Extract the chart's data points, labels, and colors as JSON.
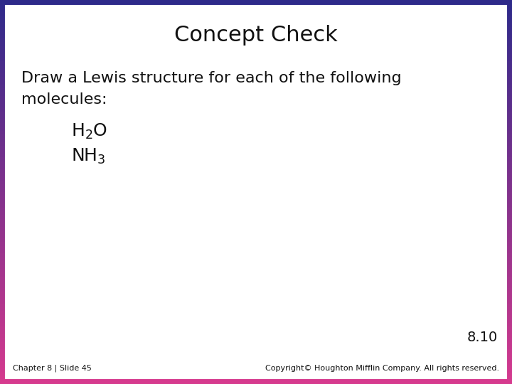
{
  "title": "Concept Check",
  "body_line1": "Draw a Lewis structure for each of the following",
  "body_line2": "molecules:",
  "slide_number": "8.10",
  "footer_left": "Chapter 8 | Slide 45",
  "footer_right": "Copyright© Houghton Mifflin Company. All rights reserved.",
  "bg_color": "#ffffff",
  "border_color_top": "#2e2a8a",
  "border_color_bottom": "#d63a8e",
  "title_fontsize": 22,
  "body_fontsize": 16,
  "molecule_fontsize": 18,
  "footer_fontsize": 8,
  "slide_num_fontsize": 14,
  "text_color": "#111111",
  "border_thickness": 10
}
